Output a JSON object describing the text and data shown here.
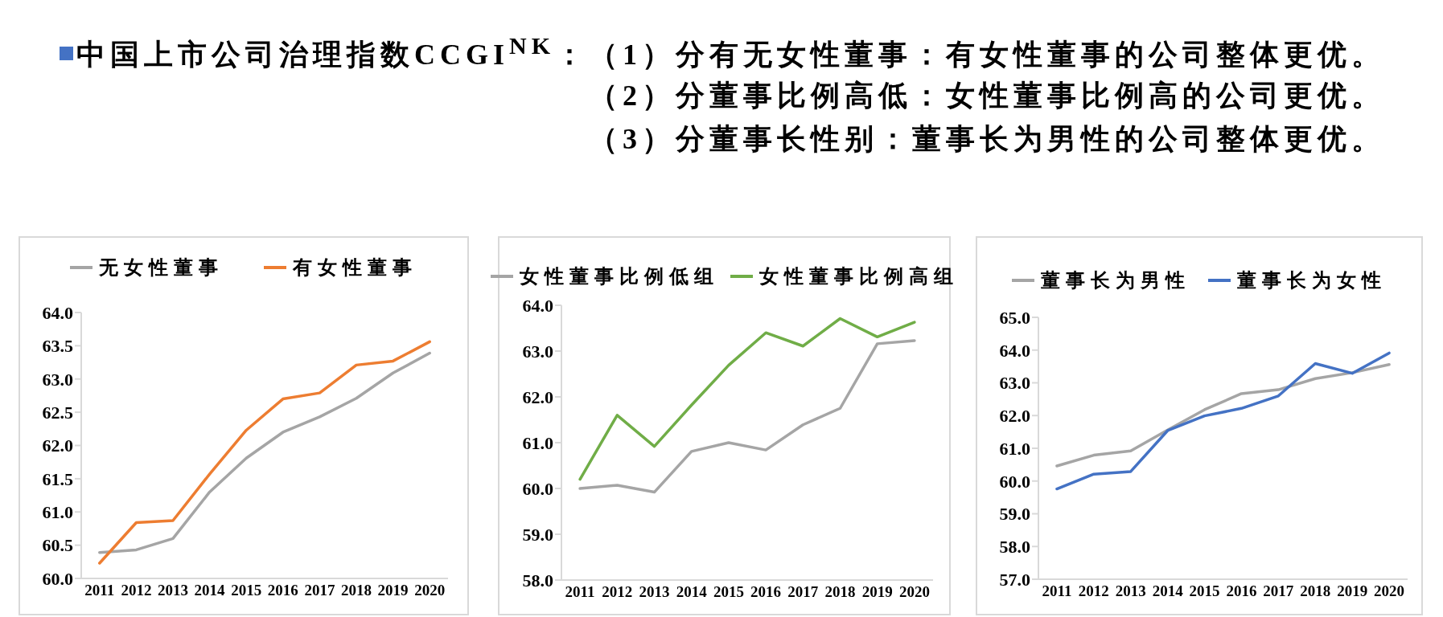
{
  "chart_data": [
    {
      "type": "line",
      "title": "中国上市公司治理指数CCGI$^{NK}$：（1）分有无女性董事：有女性董事的公司整体更优。",
      "categories": [
        "2011",
        "2012",
        "2013",
        "2014",
        "2015",
        "2016",
        "2017",
        "2018",
        "2019",
        "2020"
      ],
      "series": [
        {
          "name": "无女性董事",
          "color": "#a5a5a5",
          "values": [
            60.39,
            60.43,
            60.6,
            61.3,
            61.81,
            62.2,
            62.43,
            62.71,
            63.09,
            63.39
          ]
        },
        {
          "name": "有女性董事",
          "color": "#ed7d31",
          "values": [
            60.23,
            60.84,
            60.87,
            61.57,
            62.23,
            62.7,
            62.79,
            63.21,
            63.27,
            63.56
          ]
        }
      ],
      "ylim": [
        60,
        64
      ],
      "yticks": [
        {
          "value": 60,
          "label": "60.0"
        },
        {
          "value": 60.5,
          "label": "60.5"
        },
        {
          "value": 61,
          "label": "61.0"
        },
        {
          "value": 61.5,
          "label": "61.5"
        },
        {
          "value": 62,
          "label": "62.0"
        },
        {
          "value": 62.5,
          "label": "62.5"
        },
        {
          "value": 63,
          "label": "63.0"
        },
        {
          "value": 63.5,
          "label": "63.5"
        },
        {
          "value": 64,
          "label": "64.0"
        }
      ],
      "legend": "top"
    },
    {
      "type": "line",
      "title": "（2）分董事比例高低：女性董事比例高的公司更优。",
      "categories": [
        "2011",
        "2012",
        "2013",
        "2014",
        "2015",
        "2016",
        "2017",
        "2018",
        "2019",
        "2020"
      ],
      "series": [
        {
          "name": "女性董事比例低组",
          "color": "#a5a5a5",
          "values": [
            60.0,
            60.07,
            59.92,
            60.81,
            61.0,
            60.84,
            61.39,
            61.75,
            63.16,
            63.23
          ]
        },
        {
          "name": "女性董事比例高组",
          "color": "#70ad47",
          "values": [
            60.2,
            61.6,
            60.92,
            61.82,
            62.69,
            63.4,
            63.11,
            63.71,
            63.31,
            63.63
          ]
        }
      ],
      "ylim": [
        58,
        64
      ],
      "yticks": [
        {
          "value": 58,
          "label": "58.0"
        },
        {
          "value": 59,
          "label": "59.0"
        },
        {
          "value": 60,
          "label": "60.0"
        },
        {
          "value": 61,
          "label": "61.0"
        },
        {
          "value": 62,
          "label": "62.0"
        },
        {
          "value": 63,
          "label": "63.0"
        },
        {
          "value": 64,
          "label": "64.0"
        }
      ],
      "legend": "top"
    },
    {
      "type": "line",
      "title": "（3）分董事长性别：董事长为男性的公司整体更优。",
      "categories": [
        "2011",
        "2012",
        "2013",
        "2014",
        "2015",
        "2016",
        "2017",
        "2018",
        "2019",
        "2020"
      ],
      "series": [
        {
          "name": "董事长为男性",
          "color": "#a5a5a5",
          "values": [
            60.46,
            60.79,
            60.92,
            61.56,
            62.18,
            62.67,
            62.79,
            63.13,
            63.31,
            63.56
          ]
        },
        {
          "name": "董事长为女性",
          "color": "#4472c4",
          "values": [
            59.76,
            60.21,
            60.29,
            61.54,
            61.99,
            62.22,
            62.6,
            63.59,
            63.29,
            63.91
          ]
        }
      ],
      "ylim": [
        57,
        65
      ],
      "yticks": [
        {
          "value": 57,
          "label": "57.0"
        },
        {
          "value": 58,
          "label": "58.0"
        },
        {
          "value": 59,
          "label": "59.0"
        },
        {
          "value": 60,
          "label": "60.0"
        },
        {
          "value": 61,
          "label": "61.0"
        },
        {
          "value": 62,
          "label": "62.0"
        },
        {
          "value": 63,
          "label": "63.0"
        },
        {
          "value": 64,
          "label": "64.0"
        },
        {
          "value": 65,
          "label": "65.0"
        }
      ],
      "legend": "top"
    }
  ]
}
